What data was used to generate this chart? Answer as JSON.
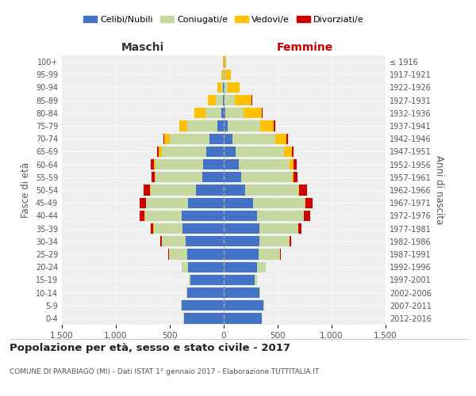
{
  "age_groups": [
    "0-4",
    "5-9",
    "10-14",
    "15-19",
    "20-24",
    "25-29",
    "30-34",
    "35-39",
    "40-44",
    "45-49",
    "50-54",
    "55-59",
    "60-64",
    "65-69",
    "70-74",
    "75-79",
    "80-84",
    "85-89",
    "90-94",
    "95-99",
    "100+"
  ],
  "birth_years": [
    "2012-2016",
    "2007-2011",
    "2002-2006",
    "1997-2001",
    "1992-1996",
    "1987-1991",
    "1982-1986",
    "1977-1981",
    "1972-1976",
    "1967-1971",
    "1962-1966",
    "1957-1961",
    "1952-1956",
    "1947-1951",
    "1942-1946",
    "1937-1941",
    "1932-1936",
    "1927-1931",
    "1922-1926",
    "1917-1921",
    "≤ 1916"
  ],
  "colors": {
    "celibi": "#4472c4",
    "coniugati": "#c5d9a0",
    "vedovi": "#ffc000",
    "divorziati": "#cc0000"
  },
  "maschi": {
    "celibi": [
      370,
      390,
      340,
      310,
      330,
      340,
      350,
      380,
      390,
      330,
      260,
      200,
      190,
      160,
      130,
      60,
      20,
      10,
      5,
      3,
      2
    ],
    "coniugati": [
      3,
      5,
      5,
      15,
      60,
      170,
      220,
      270,
      340,
      390,
      420,
      430,
      440,
      410,
      370,
      280,
      150,
      60,
      15,
      5,
      0
    ],
    "vedovi": [
      0,
      0,
      0,
      0,
      0,
      1,
      1,
      2,
      2,
      3,
      5,
      10,
      15,
      30,
      50,
      70,
      100,
      80,
      40,
      15,
      5
    ],
    "divorziati": [
      0,
      0,
      0,
      1,
      2,
      5,
      15,
      25,
      50,
      55,
      55,
      30,
      30,
      15,
      10,
      5,
      2,
      0,
      0,
      0,
      0
    ]
  },
  "femmine": {
    "celibi": [
      350,
      370,
      330,
      290,
      310,
      320,
      330,
      330,
      310,
      270,
      200,
      160,
      140,
      110,
      80,
      35,
      15,
      10,
      5,
      3,
      2
    ],
    "coniugati": [
      2,
      3,
      5,
      20,
      80,
      200,
      280,
      360,
      430,
      480,
      490,
      470,
      470,
      450,
      400,
      300,
      170,
      90,
      30,
      10,
      2
    ],
    "vedovi": [
      0,
      0,
      0,
      0,
      0,
      1,
      1,
      2,
      3,
      5,
      10,
      20,
      40,
      70,
      100,
      130,
      170,
      160,
      110,
      50,
      20
    ],
    "divorziati": [
      0,
      0,
      0,
      1,
      2,
      5,
      15,
      25,
      55,
      65,
      75,
      35,
      30,
      20,
      15,
      10,
      5,
      2,
      2,
      0,
      0
    ]
  },
  "xlim": 1500,
  "bg_color": "#efefef",
  "title": "Popolazione per età, sesso e stato civile - 2017",
  "subtitle": "COMUNE DI PARABIAGO (MI) - Dati ISTAT 1° gennaio 2017 - Elaborazione TUTTITALIA.IT",
  "legend_labels": [
    "Celibi/Nubili",
    "Coniugati/e",
    "Vedovi/e",
    "Divorziati/e"
  ],
  "xlabel_left": "Maschi",
  "xlabel_right": "Femmine",
  "ylabel_left": "Fasce di età",
  "ylabel_right": "Anni di nascita"
}
